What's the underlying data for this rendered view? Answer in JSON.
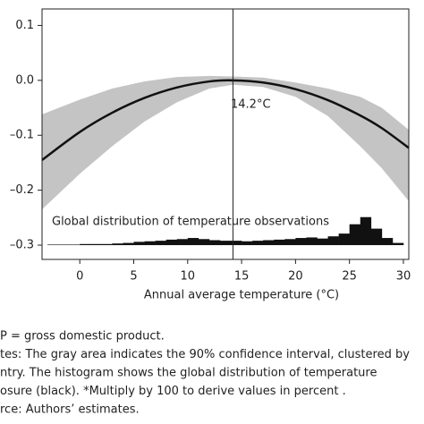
{
  "chart_data": {
    "type": "line",
    "annotation": "14.2°C",
    "marker_x": 14.2,
    "histogram_label": "Global distribution of temperature observations",
    "x_label": "Annual average temperature (°C)",
    "notes": [
      "P = gross domestic product.",
      "tes: The gray area indicates the 90% confidence interval, clustered by",
      "ntry. The histogram shows the global distribution of temperature",
      "osure (black). *Multiply by 100 to derive values in percent .",
      "rce: Authors’ estimates."
    ],
    "x": [
      -3.5,
      0,
      3,
      6,
      9,
      12,
      14.2,
      17,
      20,
      23,
      26,
      28,
      30.5
    ],
    "series": [
      {
        "name": "estimate",
        "color": "#111111",
        "values": [
          -0.145,
          -0.094,
          -0.059,
          -0.032,
          -0.013,
          -0.002,
          0.0,
          -0.004,
          -0.016,
          -0.036,
          -0.064,
          -0.087,
          -0.123
        ]
      }
    ],
    "band": {
      "color": "#c4c4c4",
      "lower": [
        -0.235,
        -0.17,
        -0.12,
        -0.075,
        -0.04,
        -0.015,
        -0.008,
        -0.012,
        -0.03,
        -0.065,
        -0.12,
        -0.16,
        -0.22
      ],
      "upper": [
        -0.062,
        -0.035,
        -0.015,
        -0.002,
        0.006,
        0.008,
        0.007,
        0.005,
        -0.004,
        -0.015,
        -0.03,
        -0.05,
        -0.09
      ]
    },
    "histogram": {
      "color": "#111111",
      "base": -0.3,
      "bins": [
        -3,
        -2,
        -1,
        0,
        1,
        2,
        3,
        4,
        5,
        6,
        7,
        8,
        9,
        10,
        11,
        12,
        13,
        14,
        15,
        16,
        17,
        18,
        19,
        20,
        21,
        22,
        23,
        24,
        25,
        26,
        27,
        28,
        29,
        30
      ],
      "tops": [
        -0.299,
        -0.299,
        -0.299,
        -0.298,
        -0.298,
        -0.298,
        -0.297,
        -0.296,
        -0.294,
        -0.293,
        -0.292,
        -0.29,
        -0.289,
        -0.287,
        -0.289,
        -0.291,
        -0.292,
        -0.292,
        -0.293,
        -0.292,
        -0.291,
        -0.29,
        -0.289,
        -0.287,
        -0.286,
        -0.288,
        -0.284,
        -0.279,
        -0.262,
        -0.249,
        -0.27,
        -0.287,
        -0.296
      ]
    },
    "xlim": [
      -3.5,
      30.5
    ],
    "xticks": [
      0,
      5,
      10,
      15,
      20,
      25,
      30
    ],
    "ylim": [
      -0.326,
      0.13
    ],
    "yticks": [
      {
        "value": 0.1,
        "label": "0.1"
      },
      {
        "value": 0,
        "label": "0.0"
      },
      {
        "value": -0.1,
        "label": "–0.1"
      },
      {
        "value": -0.2,
        "label": "–0.2"
      },
      {
        "value": -0.3,
        "label": "–0.3"
      }
    ]
  }
}
